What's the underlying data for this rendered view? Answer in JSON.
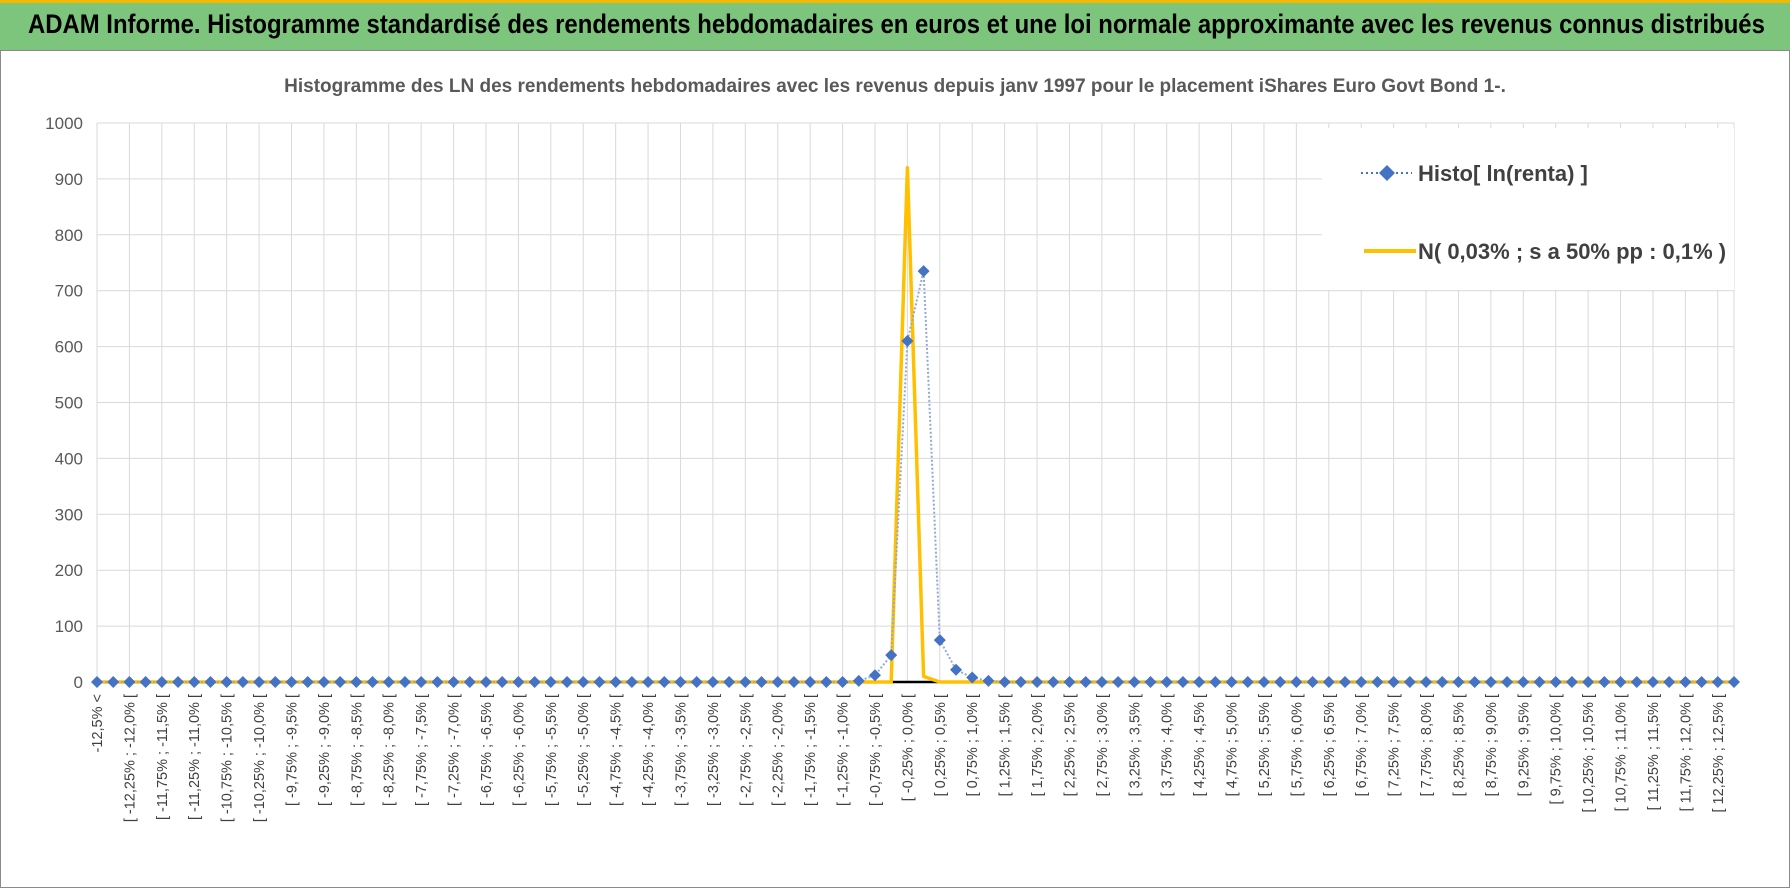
{
  "header": {
    "title": "ADAM Informe. Histogramme standardisé des rendements hebdomadaires en euros et une loi normale approximante avec les revenus connus distribués"
  },
  "colors": {
    "banner": "#7dc57d",
    "accent": "#f5b800",
    "histo": "#4472c4",
    "normal": "#ffc000"
  },
  "chart_data": {
    "type": "line",
    "title": "Histogramme des LN des rendements hebdomadaires avec les revenus depuis janv 1997 pour le placement iShares Euro Govt Bond 1-.",
    "xlabel": "",
    "ylabel": "",
    "ylim": [
      0,
      1000
    ],
    "yticks": [
      "0",
      "100",
      "200",
      "300",
      "400",
      "500",
      "600",
      "700",
      "800",
      "900",
      "1000"
    ],
    "grid": true,
    "legend_position": "top-right",
    "categories": [
      "-12,5% <",
      "[ -12,25% ; -12,0% [",
      "[ -11,75% ; -11,5% [",
      "[ -11,25% ; -11,0% [",
      "[ -10,75% ; -10,5% [",
      "[ -10,25% ; -10,0% [",
      "[ -9,75% ; -9,5% [",
      "[ -9,25% ; -9,0% [",
      "[ -8,75% ; -8,5% [",
      "[ -8,25% ; -8,0% [",
      "[ -7,75% ; -7,5% [",
      "[ -7,25% ; -7,0% [",
      "[ -6,75% ; -6,5% [",
      "[ -6,25% ; -6,0% [",
      "[ -5,75% ; -5,5% [",
      "[ -5,25% ; -5,0% [",
      "[ -4,75% ; -4,5% [",
      "[ -4,25% ; -4,0% [",
      "[ -3,75% ; -3,5% [",
      "[ -3,25% ; -3,0% [",
      "[ -2,75% ; -2,5% [",
      "[ -2,25% ; -2,0% [",
      "[ -1,75% ; -1,5% [",
      "[ -1,25% ; -1,0% [",
      "[ -0,75% ; -0,5% [",
      "[ -0,25% ; 0,0% [",
      "[ 0,25% ; 0,5% [",
      "[ 0,75% ; 1,0% [",
      "[ 1,25% ; 1,5% [",
      "[ 1,75% ; 2,0% [",
      "[ 2,25% ; 2,5% [",
      "[ 2,75% ; 3,0% [",
      "[ 3,25% ; 3,5% [",
      "[ 3,75% ; 4,0% [",
      "[ 4,25% ; 4,5% [",
      "[ 4,75% ; 5,0% [",
      "[ 5,25% ; 5,5% [",
      "[ 5,75% ; 6,0% [",
      "[ 6,25% ; 6,5% [",
      "[ 6,75% ; 7,0% [",
      "[ 7,25% ; 7,5% [",
      "[ 7,75% ; 8,0% [",
      "[ 8,25% ; 8,5% [",
      "[ 8,75% ; 9,0% [",
      "[ 9,25% ; 9,5% [",
      "[ 9,75% ; 10,0% [",
      "[ 10,25% ; 10,5% [",
      "[ 10,75% ; 11,0% [",
      "[ 11,25% ; 11,5% [",
      "[ 11,75% ; 12,0% [",
      "[ 12,25% ; 12,5% ["
    ],
    "series": [
      {
        "name": "Histo[ ln(renta) ]",
        "style": "dotted line with diamond markers",
        "x": [
          -12.5,
          -12.25,
          -12.0,
          -11.75,
          -11.5,
          -11.25,
          -11.0,
          -10.75,
          -10.5,
          -10.25,
          -10.0,
          -9.75,
          -9.5,
          -9.25,
          -9.0,
          -8.75,
          -8.5,
          -8.25,
          -8.0,
          -7.75,
          -7.5,
          -7.25,
          -7.0,
          -6.75,
          -6.5,
          -6.25,
          -6.0,
          -5.75,
          -5.5,
          -5.25,
          -5.0,
          -4.75,
          -4.5,
          -4.25,
          -4.0,
          -3.75,
          -3.5,
          -3.25,
          -3.0,
          -2.75,
          -2.5,
          -2.25,
          -2.0,
          -1.75,
          -1.5,
          -1.25,
          -1.0,
          -0.75,
          -0.5,
          -0.25,
          0.0,
          0.25,
          0.5,
          0.75,
          1.0,
          1.25,
          1.5,
          1.75,
          2.0,
          2.25,
          2.5,
          2.75,
          3.0,
          3.25,
          3.5,
          3.75,
          4.0,
          4.25,
          4.5,
          4.75,
          5.0,
          5.25,
          5.5,
          5.75,
          6.0,
          6.25,
          6.5,
          6.75,
          7.0,
          7.25,
          7.5,
          7.75,
          8.0,
          8.25,
          8.5,
          8.75,
          9.0,
          9.25,
          9.5,
          9.75,
          10.0,
          10.25,
          10.5,
          10.75,
          11.0,
          11.25,
          11.5,
          11.75,
          12.0,
          12.25,
          12.5,
          12.75
        ],
        "values": [
          0,
          0,
          0,
          0,
          0,
          0,
          0,
          0,
          0,
          0,
          0,
          0,
          0,
          0,
          0,
          0,
          0,
          0,
          0,
          0,
          0,
          0,
          0,
          0,
          0,
          0,
          0,
          0,
          0,
          0,
          0,
          0,
          0,
          0,
          0,
          0,
          0,
          0,
          0,
          0,
          0,
          0,
          0,
          0,
          0,
          0,
          0,
          2,
          12,
          48,
          610,
          735,
          75,
          22,
          8,
          2,
          0,
          0,
          0,
          0,
          0,
          0,
          0,
          0,
          0,
          0,
          0,
          0,
          0,
          0,
          0,
          0,
          0,
          0,
          0,
          0,
          0,
          0,
          0,
          0,
          0,
          0,
          0,
          0,
          0,
          0,
          0,
          0,
          0,
          0,
          0,
          0,
          0,
          0,
          0,
          0,
          0,
          0,
          0,
          0,
          0,
          0
        ]
      },
      {
        "name": "N( 0,03% ; s a 50% pp : 0,1% )",
        "style": "solid line",
        "x": [
          -12.5,
          -0.5,
          -0.25,
          0.0,
          0.25,
          0.5,
          12.75
        ],
        "values": [
          0,
          0,
          0,
          920,
          10,
          0,
          0
        ]
      }
    ]
  }
}
